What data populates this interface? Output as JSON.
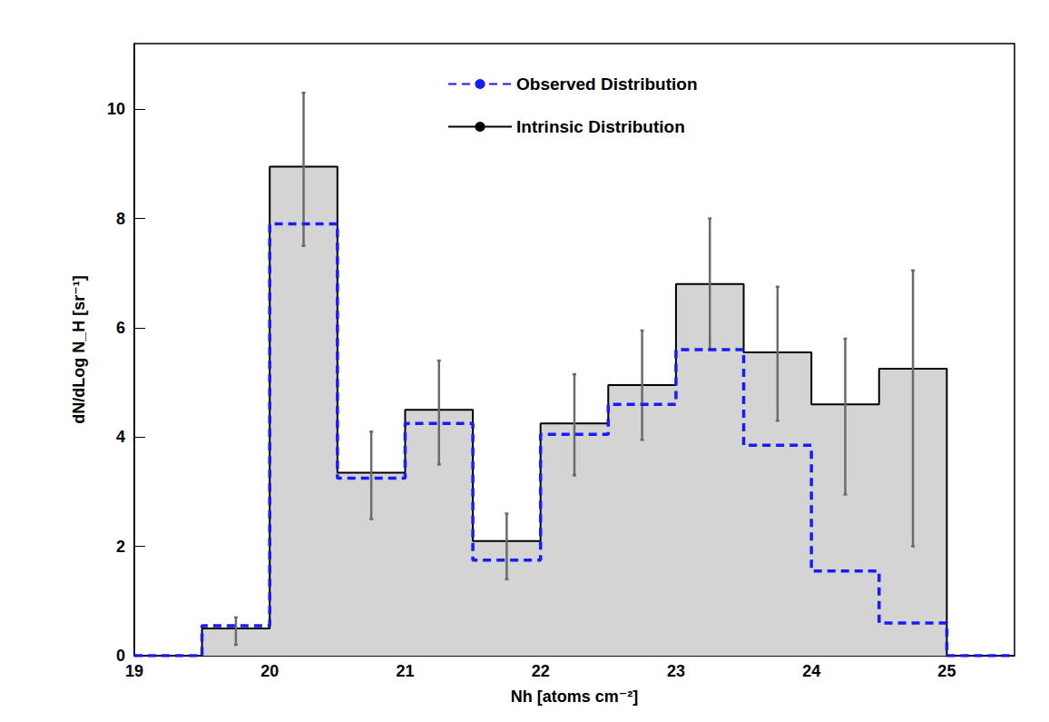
{
  "chart_data": {
    "type": "histogram",
    "xlabel": "Nh [atoms cm⁻²]",
    "ylabel": "dN/dLog N_H [sr⁻¹]",
    "bins": [
      19,
      19.5,
      20,
      20.5,
      21,
      21.5,
      22,
      22.5,
      23,
      23.5,
      24,
      24.5,
      25,
      25.5
    ],
    "series": [
      {
        "name": "Observed Distribution",
        "color": "#1a1aff",
        "line_style": "dashed",
        "values": [
          0,
          0.55,
          7.9,
          3.25,
          4.25,
          1.75,
          4.05,
          4.6,
          5.6,
          3.85,
          1.55,
          0.6,
          0
        ]
      },
      {
        "name": "Intrinsic Distribution",
        "color": "#000000",
        "line_style": "solid",
        "values": [
          0,
          0.5,
          8.95,
          3.35,
          4.5,
          2.1,
          4.25,
          4.95,
          6.8,
          5.55,
          4.6,
          5.25,
          0
        ],
        "error_low": [
          null,
          0.2,
          7.5,
          2.5,
          3.5,
          1.4,
          3.3,
          3.95,
          5.6,
          4.3,
          2.95,
          2.0,
          null
        ],
        "error_high": [
          null,
          0.7,
          10.3,
          4.1,
          5.4,
          2.6,
          5.15,
          5.95,
          8.0,
          6.75,
          5.8,
          7.05,
          null
        ]
      }
    ],
    "xlim": [
      19,
      25.5
    ],
    "ylim": [
      0,
      11.2
    ],
    "xticks": [
      19,
      20,
      21,
      22,
      23,
      24,
      25
    ],
    "yticks": [
      0,
      2,
      4,
      6,
      8,
      10
    ],
    "grid": false,
    "legend": "upper right"
  }
}
